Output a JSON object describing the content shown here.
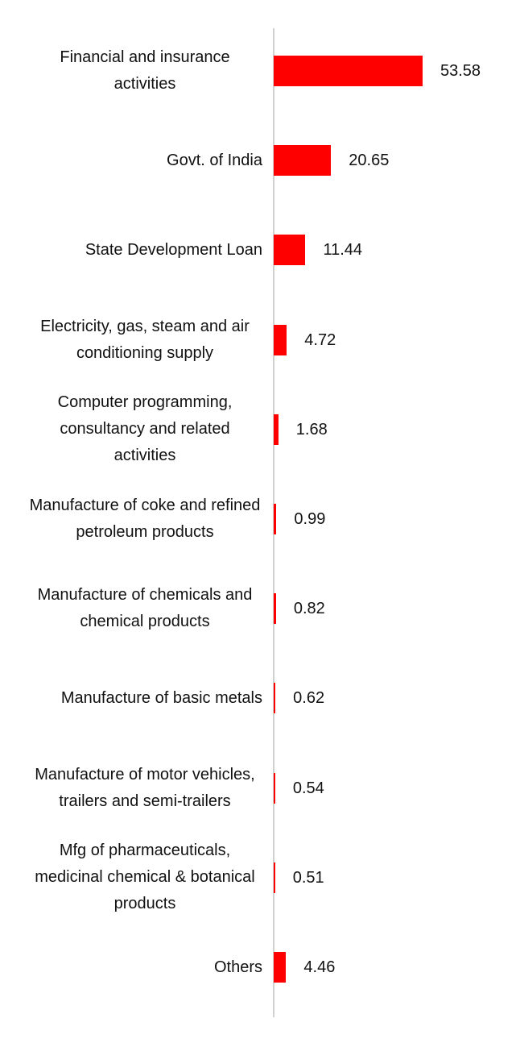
{
  "chart_data": {
    "type": "bar",
    "orientation": "horizontal",
    "categories": [
      "Financial and insurance activities",
      "Govt. of India",
      "State Development Loan",
      "Electricity, gas, steam and air conditioning supply",
      "Computer programming, consultancy and related activities",
      "Manufacture of coke and refined petroleum products",
      "Manufacture of chemicals and chemical products",
      "Manufacture of basic metals",
      "Manufacture of motor vehicles, trailers and semi-trailers",
      "Mfg of pharmaceuticals, medicinal chemical & botanical products",
      "Others"
    ],
    "values": [
      53.58,
      20.65,
      11.44,
      4.72,
      1.68,
      0.99,
      0.82,
      0.62,
      0.54,
      0.51,
      4.46
    ],
    "color": "#ff0000"
  }
}
